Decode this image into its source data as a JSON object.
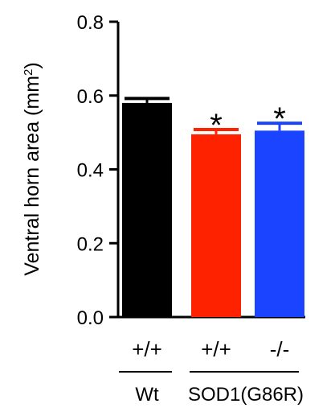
{
  "chart_data": {
    "type": "bar",
    "categories": [
      "+/+",
      "+/+",
      "-/-"
    ],
    "values": [
      0.58,
      0.495,
      0.505
    ],
    "errors": [
      0.012,
      0.013,
      0.02
    ],
    "colors": [
      "#000000",
      "#ff2200",
      "#1a44ff"
    ],
    "significance": [
      "",
      "*",
      "*"
    ],
    "ylabel": "Ventral horn area (mm",
    "ylabel_superscript": "2",
    "ylabel_suffix": ")",
    "ylim": [
      0,
      0.8
    ],
    "yticks": [
      "0.0",
      "0.2",
      "0.4",
      "0.6",
      "0.8"
    ],
    "groups": [
      {
        "label": "Wt",
        "categories": [
          0
        ]
      },
      {
        "label": "SOD1(G86R)",
        "categories": [
          1,
          2
        ]
      }
    ],
    "grid": false
  }
}
